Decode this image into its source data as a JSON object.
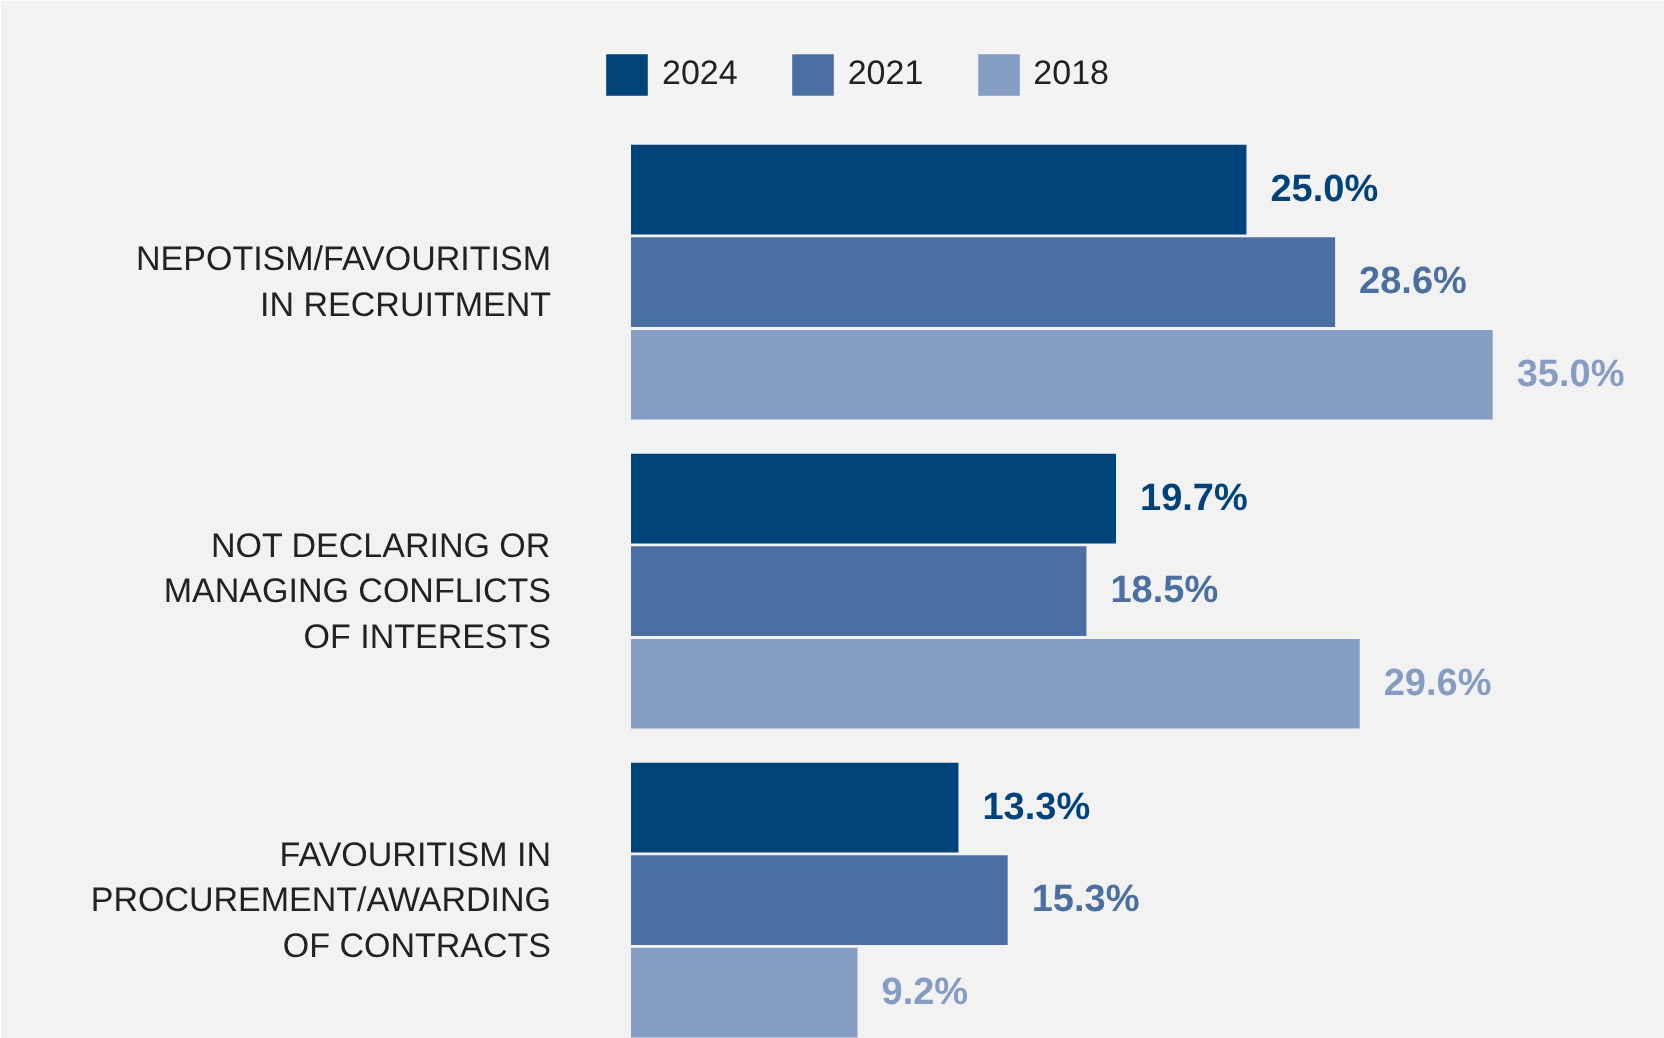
{
  "chart_data": {
    "type": "bar",
    "orientation": "horizontal",
    "categories": [
      "NEPOTISM/FAVOURITISM IN RECRUITMENT",
      "NOT DECLARING OR MANAGING CONFLICTS OF INTERESTS",
      "FAVOURITISM IN PROCUREMENT/AWARDING OF CONTRACTS"
    ],
    "series": [
      {
        "name": "2024",
        "color": "#00427a",
        "values": [
          25.0,
          19.7,
          13.3
        ],
        "value_labels": [
          "25.0%",
          "19.7%",
          "13.3%"
        ]
      },
      {
        "name": "2021",
        "color": "#4a6fa0",
        "values": [
          28.6,
          18.5,
          15.3
        ],
        "value_labels": [
          "28.6%",
          "18.5%",
          "15.3%"
        ]
      },
      {
        "name": "2018",
        "color": "#869dc3",
        "values": [
          35.0,
          29.6,
          9.2
        ],
        "value_labels": [
          "35.0%",
          "29.6%",
          "9.2%"
        ]
      }
    ],
    "legend": "top",
    "grid": false
  }
}
